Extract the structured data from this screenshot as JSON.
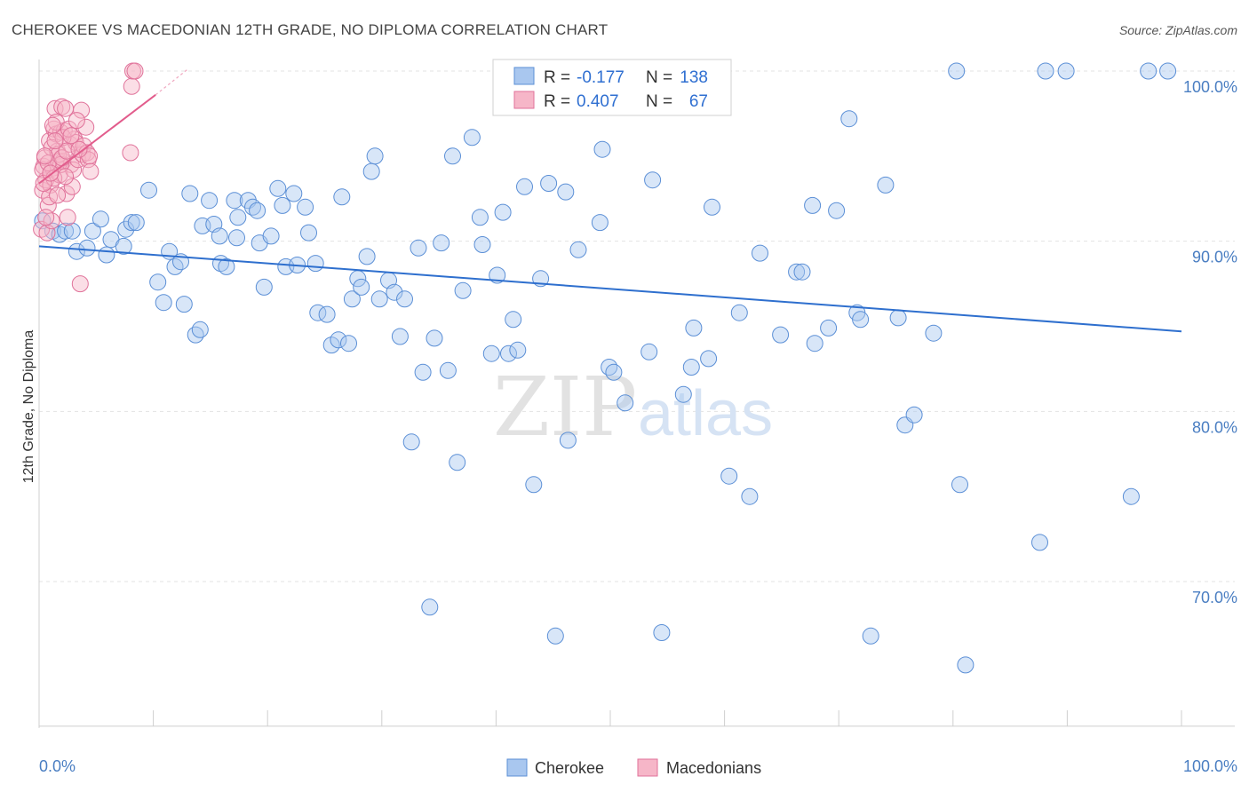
{
  "title": "CHEROKEE VS MACEDONIAN 12TH GRADE, NO DIPLOMA CORRELATION CHART",
  "source": "Source: ZipAtlas.com",
  "watermark": {
    "zip": "ZIP",
    "atlas": "atlas"
  },
  "legend": {
    "r_label": "R =",
    "n_label": "N =",
    "rows": [
      {
        "series": "Cherokee",
        "r": "-0.177",
        "n": "138",
        "color": "#a9c7ef",
        "stroke": "#5b8fd6"
      },
      {
        "series": "Macedonians",
        "r": "0.407",
        "n": "67",
        "color": "#f6b6c8",
        "stroke": "#e0729a"
      }
    ]
  },
  "chart_data": {
    "type": "scatter",
    "title": "CHEROKEE VS MACEDONIAN 12TH GRADE, NO DIPLOMA CORRELATION CHART",
    "xlabel": "",
    "ylabel": "12th Grade, No Diploma",
    "xlim": [
      0,
      100
    ],
    "ylim": [
      61.5,
      101.5
    ],
    "x_tick_labels": [
      {
        "value": 0,
        "label": "0.0%"
      },
      {
        "value": 100,
        "label": "100.0%"
      }
    ],
    "y_tick_labels": [
      {
        "value": 70,
        "label": "70.0%"
      },
      {
        "value": 80,
        "label": "80.0%"
      },
      {
        "value": 90,
        "label": "90.0%"
      },
      {
        "value": 100,
        "label": "100.0%"
      }
    ],
    "grid": true,
    "legend_position": "top-center",
    "series": [
      {
        "name": "Cherokee",
        "color": "#5b8fd6",
        "trend": {
          "x": [
            0,
            100
          ],
          "y": [
            89.7,
            84.7
          ]
        },
        "points": [
          [
            0.3,
            91.2
          ],
          [
            1.2,
            90.6
          ],
          [
            1.8,
            90.4
          ],
          [
            2.3,
            90.6
          ],
          [
            2.9,
            90.6
          ],
          [
            3.3,
            89.4
          ],
          [
            4.2,
            89.6
          ],
          [
            4.7,
            90.6
          ],
          [
            5.4,
            91.3
          ],
          [
            6.3,
            90.1
          ],
          [
            5.9,
            89.2
          ],
          [
            7.4,
            89.7
          ],
          [
            7.6,
            90.7
          ],
          [
            8.1,
            91.1
          ],
          [
            8.5,
            91.1
          ],
          [
            9.6,
            93.0
          ],
          [
            10.4,
            87.6
          ],
          [
            10.9,
            86.4
          ],
          [
            11.4,
            89.4
          ],
          [
            11.9,
            88.5
          ],
          [
            12.4,
            88.8
          ],
          [
            12.7,
            86.3
          ],
          [
            13.2,
            92.8
          ],
          [
            13.7,
            84.5
          ],
          [
            14.1,
            84.8
          ],
          [
            14.3,
            90.9
          ],
          [
            14.9,
            92.4
          ],
          [
            15.3,
            91.0
          ],
          [
            15.8,
            90.3
          ],
          [
            15.9,
            88.7
          ],
          [
            16.4,
            88.5
          ],
          [
            17.1,
            92.4
          ],
          [
            17.3,
            90.2
          ],
          [
            17.4,
            91.4
          ],
          [
            18.3,
            92.4
          ],
          [
            18.7,
            92.0
          ],
          [
            19.1,
            91.8
          ],
          [
            19.3,
            89.9
          ],
          [
            19.7,
            87.3
          ],
          [
            20.3,
            90.3
          ],
          [
            20.9,
            93.1
          ],
          [
            21.3,
            92.1
          ],
          [
            21.6,
            88.5
          ],
          [
            22.3,
            92.8
          ],
          [
            22.6,
            88.6
          ],
          [
            23.3,
            92.0
          ],
          [
            23.6,
            90.5
          ],
          [
            24.2,
            88.7
          ],
          [
            24.4,
            85.8
          ],
          [
            25.2,
            85.7
          ],
          [
            25.6,
            83.9
          ],
          [
            26.2,
            84.2
          ],
          [
            26.5,
            92.6
          ],
          [
            27.1,
            84.0
          ],
          [
            27.4,
            86.6
          ],
          [
            27.9,
            87.8
          ],
          [
            28.2,
            87.3
          ],
          [
            28.7,
            89.1
          ],
          [
            29.1,
            94.1
          ],
          [
            29.4,
            95.0
          ],
          [
            29.8,
            86.6
          ],
          [
            30.6,
            87.7
          ],
          [
            31.1,
            87.0
          ],
          [
            31.6,
            84.4
          ],
          [
            32.0,
            86.6
          ],
          [
            32.6,
            78.2
          ],
          [
            33.2,
            89.6
          ],
          [
            33.6,
            82.3
          ],
          [
            34.2,
            68.5
          ],
          [
            34.6,
            84.3
          ],
          [
            35.2,
            89.9
          ],
          [
            35.8,
            82.4
          ],
          [
            36.2,
            95.0
          ],
          [
            36.6,
            77.0
          ],
          [
            37.1,
            87.1
          ],
          [
            37.9,
            96.1
          ],
          [
            38.6,
            91.4
          ],
          [
            38.8,
            89.8
          ],
          [
            39.6,
            83.4
          ],
          [
            40.1,
            88.0
          ],
          [
            40.6,
            91.7
          ],
          [
            41.1,
            83.4
          ],
          [
            41.5,
            85.4
          ],
          [
            41.9,
            83.6
          ],
          [
            42.5,
            93.2
          ],
          [
            43.3,
            75.7
          ],
          [
            43.9,
            87.8
          ],
          [
            44.6,
            93.4
          ],
          [
            45.2,
            66.8
          ],
          [
            46.1,
            92.9
          ],
          [
            46.3,
            78.3
          ],
          [
            47.2,
            89.5
          ],
          [
            47.3,
            100.0
          ],
          [
            49.1,
            91.1
          ],
          [
            49.3,
            95.4
          ],
          [
            49.9,
            82.6
          ],
          [
            50.3,
            82.3
          ],
          [
            51.3,
            80.5
          ],
          [
            52.1,
            99.4
          ],
          [
            52.8,
            100.0
          ],
          [
            53.4,
            83.5
          ],
          [
            53.7,
            93.6
          ],
          [
            54.5,
            67.0
          ],
          [
            56.2,
            100.0
          ],
          [
            56.4,
            81.0
          ],
          [
            57.1,
            82.6
          ],
          [
            57.3,
            84.9
          ],
          [
            58.6,
            83.1
          ],
          [
            58.9,
            92.0
          ],
          [
            60.4,
            76.2
          ],
          [
            61.3,
            85.8
          ],
          [
            62.2,
            75.0
          ],
          [
            63.1,
            89.3
          ],
          [
            64.9,
            84.5
          ],
          [
            66.3,
            88.2
          ],
          [
            66.8,
            88.2
          ],
          [
            67.7,
            92.1
          ],
          [
            67.9,
            84.0
          ],
          [
            69.1,
            84.9
          ],
          [
            69.8,
            91.8
          ],
          [
            70.9,
            97.2
          ],
          [
            71.6,
            85.8
          ],
          [
            71.9,
            85.4
          ],
          [
            72.8,
            66.8
          ],
          [
            74.1,
            93.3
          ],
          [
            75.2,
            85.5
          ],
          [
            75.8,
            79.2
          ],
          [
            76.6,
            79.8
          ],
          [
            78.3,
            84.6
          ],
          [
            80.3,
            100.0
          ],
          [
            80.6,
            75.7
          ],
          [
            81.1,
            65.1
          ],
          [
            87.6,
            72.3
          ],
          [
            88.1,
            100.0
          ],
          [
            89.9,
            100.0
          ],
          [
            95.6,
            75.0
          ],
          [
            97.1,
            100.0
          ],
          [
            98.8,
            100.0
          ]
        ]
      },
      {
        "name": "Macedonians",
        "color": "#e0729a",
        "trend": {
          "x": [
            0,
            10.2
          ],
          "y": [
            93.4,
            98.6
          ]
        },
        "points": [
          [
            0.2,
            90.7
          ],
          [
            0.3,
            93.0
          ],
          [
            0.4,
            94.4
          ],
          [
            0.5,
            94.9
          ],
          [
            0.6,
            93.6
          ],
          [
            0.7,
            90.5
          ],
          [
            0.8,
            92.1
          ],
          [
            0.9,
            95.9
          ],
          [
            1.0,
            93.3
          ],
          [
            1.1,
            91.2
          ],
          [
            1.2,
            94.3
          ],
          [
            1.3,
            96.6
          ],
          [
            1.4,
            97.8
          ],
          [
            1.5,
            96.3
          ],
          [
            1.6,
            95.3
          ],
          [
            1.7,
            94.7
          ],
          [
            1.8,
            93.9
          ],
          [
            1.9,
            96.4
          ],
          [
            2.0,
            97.9
          ],
          [
            2.1,
            94.7
          ],
          [
            2.2,
            96.5
          ],
          [
            2.3,
            97.8
          ],
          [
            2.4,
            92.8
          ],
          [
            2.5,
            91.4
          ],
          [
            2.7,
            95.7
          ],
          [
            2.8,
            94.5
          ],
          [
            2.9,
            93.2
          ],
          [
            3.0,
            94.2
          ],
          [
            3.1,
            96.0
          ],
          [
            3.2,
            95.8
          ],
          [
            3.4,
            94.8
          ],
          [
            3.6,
            87.5
          ],
          [
            3.7,
            97.7
          ],
          [
            3.8,
            95.1
          ],
          [
            3.9,
            95.6
          ],
          [
            4.1,
            96.7
          ],
          [
            4.2,
            95.2
          ],
          [
            4.3,
            94.8
          ],
          [
            4.4,
            95.0
          ],
          [
            4.5,
            94.1
          ],
          [
            0.3,
            94.2
          ],
          [
            0.6,
            91.4
          ],
          [
            0.9,
            92.6
          ],
          [
            1.1,
            95.5
          ],
          [
            1.3,
            93.7
          ],
          [
            1.5,
            97.0
          ],
          [
            1.7,
            95.1
          ],
          [
            1.9,
            94.5
          ],
          [
            2.1,
            96.1
          ],
          [
            2.3,
            93.8
          ],
          [
            2.6,
            96.6
          ],
          [
            3.3,
            97.1
          ],
          [
            0.4,
            93.4
          ],
          [
            0.8,
            94.6
          ],
          [
            1.2,
            96.8
          ],
          [
            1.6,
            92.7
          ],
          [
            2.0,
            94.9
          ],
          [
            2.4,
            95.3
          ],
          [
            2.8,
            96.2
          ],
          [
            3.5,
            95.4
          ],
          [
            8.0,
            95.2
          ],
          [
            8.1,
            99.1
          ],
          [
            8.2,
            100.0
          ],
          [
            8.4,
            100.0
          ],
          [
            0.5,
            95.0
          ],
          [
            1.0,
            94.0
          ],
          [
            1.4,
            95.9
          ]
        ]
      }
    ]
  },
  "bottom_legend": [
    {
      "label": "Cherokee",
      "color": "#a9c7ef",
      "stroke": "#5b8fd6"
    },
    {
      "label": "Macedonians",
      "color": "#f6b6c8",
      "stroke": "#e0729a"
    }
  ]
}
